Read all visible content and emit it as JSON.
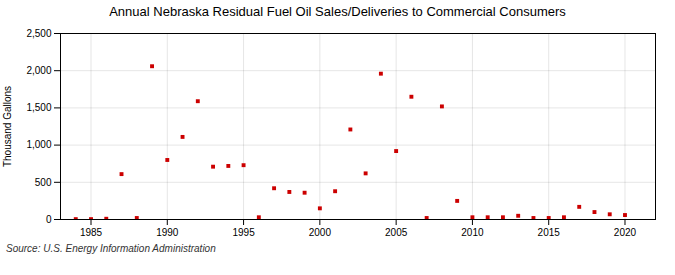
{
  "chart_data": {
    "type": "scatter",
    "title": "Annual Nebraska Residual Fuel Oil Sales/Deliveries to Commercial Consumers",
    "ylabel": "Thousand Gallons",
    "source": "Source: U.S. Energy Information Administration",
    "x": [
      1984,
      1985,
      1986,
      1987,
      1988,
      1989,
      1990,
      1991,
      1992,
      1993,
      1994,
      1995,
      1996,
      1997,
      1998,
      1999,
      2000,
      2001,
      2002,
      2003,
      2004,
      2005,
      2006,
      2007,
      2008,
      2009,
      2010,
      2011,
      2012,
      2013,
      2014,
      2015,
      2016,
      2017,
      2018,
      2019,
      2020
    ],
    "values": [
      5,
      5,
      10,
      610,
      20,
      2060,
      800,
      1110,
      1590,
      710,
      720,
      730,
      30,
      420,
      370,
      360,
      150,
      380,
      1210,
      620,
      1960,
      920,
      1650,
      20,
      1520,
      250,
      30,
      30,
      30,
      50,
      20,
      20,
      30,
      170,
      100,
      70,
      60
    ],
    "color": "#cc0000",
    "marker": "square",
    "xlim": [
      1983,
      2022
    ],
    "xticks": [
      1985,
      1990,
      1995,
      2000,
      2005,
      2010,
      2015,
      2020
    ],
    "ylim": [
      0,
      2500
    ],
    "yticks": [
      0,
      500,
      {
        "value": 1000,
        "label": "1,000"
      },
      {
        "value": 1500,
        "label": "1,500"
      },
      {
        "value": 2000,
        "label": "2,000"
      },
      {
        "value": 2500,
        "label": "2,500"
      }
    ],
    "grid": true
  }
}
